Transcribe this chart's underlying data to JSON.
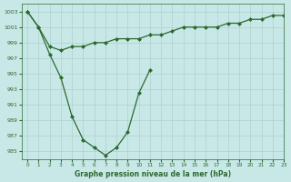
{
  "line1_x": [
    0,
    1,
    2,
    3,
    4,
    5,
    6,
    7,
    8,
    9,
    10,
    11,
    12,
    13,
    14,
    15,
    16,
    17,
    18,
    19,
    20,
    21,
    22,
    23
  ],
  "line1_y": [
    1003,
    1001,
    998.5,
    998,
    998.5,
    998.5,
    999,
    999,
    999.5,
    999.5,
    999.5,
    1000,
    1000,
    1000.5,
    1001,
    1001,
    1001,
    1001,
    1001.5,
    1001.5,
    1002,
    1002,
    1002.5,
    1002.5
  ],
  "line2_x": [
    0,
    1,
    2,
    3,
    4,
    5,
    6,
    7,
    8,
    9,
    10,
    11
  ],
  "line2_y": [
    1003,
    1001,
    997.5,
    994.5,
    989.5,
    986.5,
    985.5,
    984.5,
    985.5,
    987.5,
    992.5,
    995.5
  ],
  "line_color": "#2d6a2d",
  "bg_color": "#c8e8e8",
  "grid_color": "#b0d0d0",
  "xlabel": "Graphe pression niveau de la mer (hPa)",
  "ylim": [
    984,
    1004
  ],
  "xlim": [
    -0.5,
    23
  ],
  "yticks": [
    985,
    987,
    989,
    991,
    993,
    995,
    997,
    999,
    1001,
    1003
  ],
  "xticks": [
    0,
    1,
    2,
    3,
    4,
    5,
    6,
    7,
    8,
    9,
    10,
    11,
    12,
    13,
    14,
    15,
    16,
    17,
    18,
    19,
    20,
    21,
    22,
    23
  ]
}
